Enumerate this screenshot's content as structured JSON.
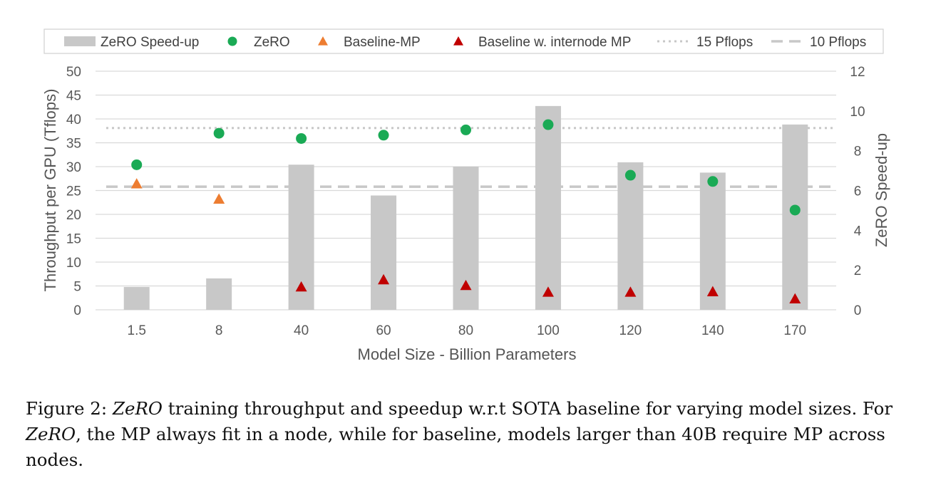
{
  "chart_data": {
    "type": "bar",
    "categories": [
      "1.5",
      "8",
      "40",
      "60",
      "80",
      "100",
      "120",
      "140",
      "170"
    ],
    "xlabel": "Model Size - Billion Parameters",
    "ylabel": "Throughput per GPU (Tflops)",
    "y2label": "ZeRO Speed-up",
    "ylim": [
      0,
      50
    ],
    "y2lim": [
      0,
      12
    ],
    "yticks": [
      "0",
      "5",
      "10",
      "15",
      "20",
      "25",
      "30",
      "35",
      "40",
      "45",
      "50"
    ],
    "y2ticks": [
      "0",
      "2",
      "4",
      "6",
      "8",
      "10",
      "12"
    ],
    "grid": true,
    "legend_position": "top",
    "series": [
      {
        "name": "ZeRO Speed-up",
        "kind": "bar",
        "axis": "right",
        "color": "#c8c8c8",
        "values": [
          1.15,
          1.58,
          7.3,
          5.75,
          7.2,
          10.25,
          7.42,
          6.9,
          9.32
        ]
      },
      {
        "name": "ZeRO",
        "kind": "marker-circle",
        "axis": "left",
        "color": "#1aaa55",
        "values": [
          30.4,
          37.0,
          35.9,
          36.6,
          37.7,
          38.8,
          28.2,
          26.9,
          20.9
        ]
      },
      {
        "name": "Baseline-MP",
        "kind": "marker-triangle",
        "axis": "left",
        "color": "#ed7d31",
        "values": [
          26.4,
          23.2,
          null,
          null,
          null,
          null,
          null,
          null,
          null
        ]
      },
      {
        "name": "Baseline w. internode MP",
        "kind": "marker-triangle",
        "axis": "left",
        "color": "#c00000",
        "values": [
          null,
          null,
          4.8,
          6.3,
          5.1,
          3.7,
          3.7,
          3.8,
          2.3
        ]
      },
      {
        "name": "15 Pflops",
        "kind": "hline-dotted",
        "axis": "left",
        "color": "#c8c8c8",
        "value": 38.1
      },
      {
        "name": "10 Pflops",
        "kind": "hline-dashed",
        "axis": "left",
        "color": "#c8c8c8",
        "value": 25.8
      }
    ]
  },
  "caption": {
    "prefix": "Figure 2: ",
    "em1": "ZeRO",
    "text1": " training throughput and speedup w.r.t SOTA baseline for varying model sizes. For ",
    "em2": "ZeRO",
    "text2": ", the MP always fit in a node, while for baseline, models larger than 40B require MP across nodes."
  }
}
